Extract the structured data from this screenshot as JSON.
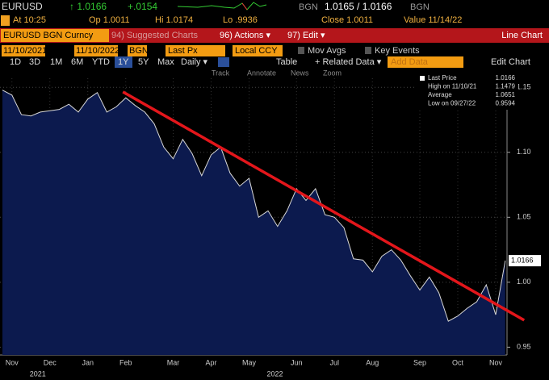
{
  "header": {
    "ticker": "EURUSD",
    "price": "↑ 1.0166",
    "change": "+.0154",
    "bid_source": "BGN",
    "bid_ask": "1.0165 / 1.0166",
    "ask_source": "BGN",
    "stats": [
      "At 10:25",
      "Op 1.0011",
      "Hi 1.0174",
      "Lo .9936",
      "Close 1.0011",
      "Value 11/14/22"
    ]
  },
  "menu": {
    "security": "EURUSD BGN Curncy",
    "items": [
      "94) Suggested Charts",
      "96) Actions ▾",
      "97) Edit ▾"
    ],
    "chart_type": "Line Chart"
  },
  "controls": {
    "start_date": "11/10/2021",
    "end_date": "11/10/2022",
    "source": "BGN",
    "field": "Last Px",
    "currency": "Local CCY",
    "mov_avgs": "Mov Avgs",
    "key_events": "Key Events",
    "ranges": [
      "1D",
      "3D",
      "1M",
      "6M",
      "YTD",
      "1Y",
      "5Y",
      "Max"
    ],
    "frequency": "Daily ▾",
    "table": "Table",
    "related": "+ Related Data ▾",
    "add_data": "Add Data",
    "edit_chart": "Edit Chart",
    "tools": [
      "Track",
      "Annotate",
      "News",
      "Zoom"
    ]
  },
  "legend": [
    {
      "label": "Last Price",
      "value": "1.0166"
    },
    {
      "label": "High on 11/10/21",
      "value": "1.1479"
    },
    {
      "label": "Average",
      "value": "1.0651"
    },
    {
      "label": "Low on 09/27/22",
      "value": "0.9594"
    }
  ],
  "chart_data": {
    "type": "line",
    "categories": [
      null,
      "Nov",
      null,
      null,
      null,
      "Dec",
      null,
      null,
      null,
      "Jan",
      null,
      null,
      null,
      "Feb",
      null,
      null,
      null,
      null,
      "Mar",
      null,
      null,
      null,
      "Apr",
      null,
      null,
      null,
      "May",
      null,
      null,
      null,
      null,
      "Jun",
      null,
      null,
      null,
      "Jul",
      null,
      null,
      null,
      "Aug",
      null,
      null,
      null,
      null,
      "Sep",
      null,
      null,
      null,
      "Oct",
      null,
      null,
      null,
      "Nov",
      null
    ],
    "year_labels": [
      {
        "index": 1,
        "label": "2021"
      },
      {
        "index": 26,
        "label": "2022"
      }
    ],
    "series": [
      {
        "name": "Last Price",
        "color": "#d8d8d8",
        "values": [
          1.1479,
          1.144,
          1.129,
          1.128,
          1.131,
          1.132,
          1.133,
          1.137,
          1.131,
          1.141,
          1.146,
          1.131,
          1.135,
          1.142,
          1.136,
          1.131,
          1.122,
          1.104,
          1.095,
          1.11,
          1.099,
          1.082,
          1.098,
          1.104,
          1.084,
          1.074,
          1.08,
          1.05,
          1.055,
          1.043,
          1.055,
          1.072,
          1.063,
          1.072,
          1.052,
          1.05,
          1.042,
          1.018,
          1.017,
          1.008,
          1.02,
          1.025,
          1.017,
          1.005,
          0.994,
          1.004,
          0.992,
          0.97,
          0.974,
          0.98,
          0.985,
          0.998,
          0.975,
          1.0166
        ]
      }
    ],
    "area_color": "#0c1a4e",
    "trendline": {
      "x": [
        12.7,
        55
      ],
      "y": [
        1.1465,
        0.9708
      ],
      "color": "#e3161b"
    },
    "current_value": 1.0166,
    "ylim": [
      0.944,
      1.157
    ],
    "yticks": [
      {
        "value": 1.15,
        "label": "1.15"
      },
      {
        "value": 1.1,
        "label": "1.10"
      },
      {
        "value": 1.05,
        "label": "1.05"
      },
      {
        "value": 1,
        "label": "1.00"
      },
      {
        "value": 0.95,
        "label": "0.95"
      }
    ],
    "grid": true
  }
}
